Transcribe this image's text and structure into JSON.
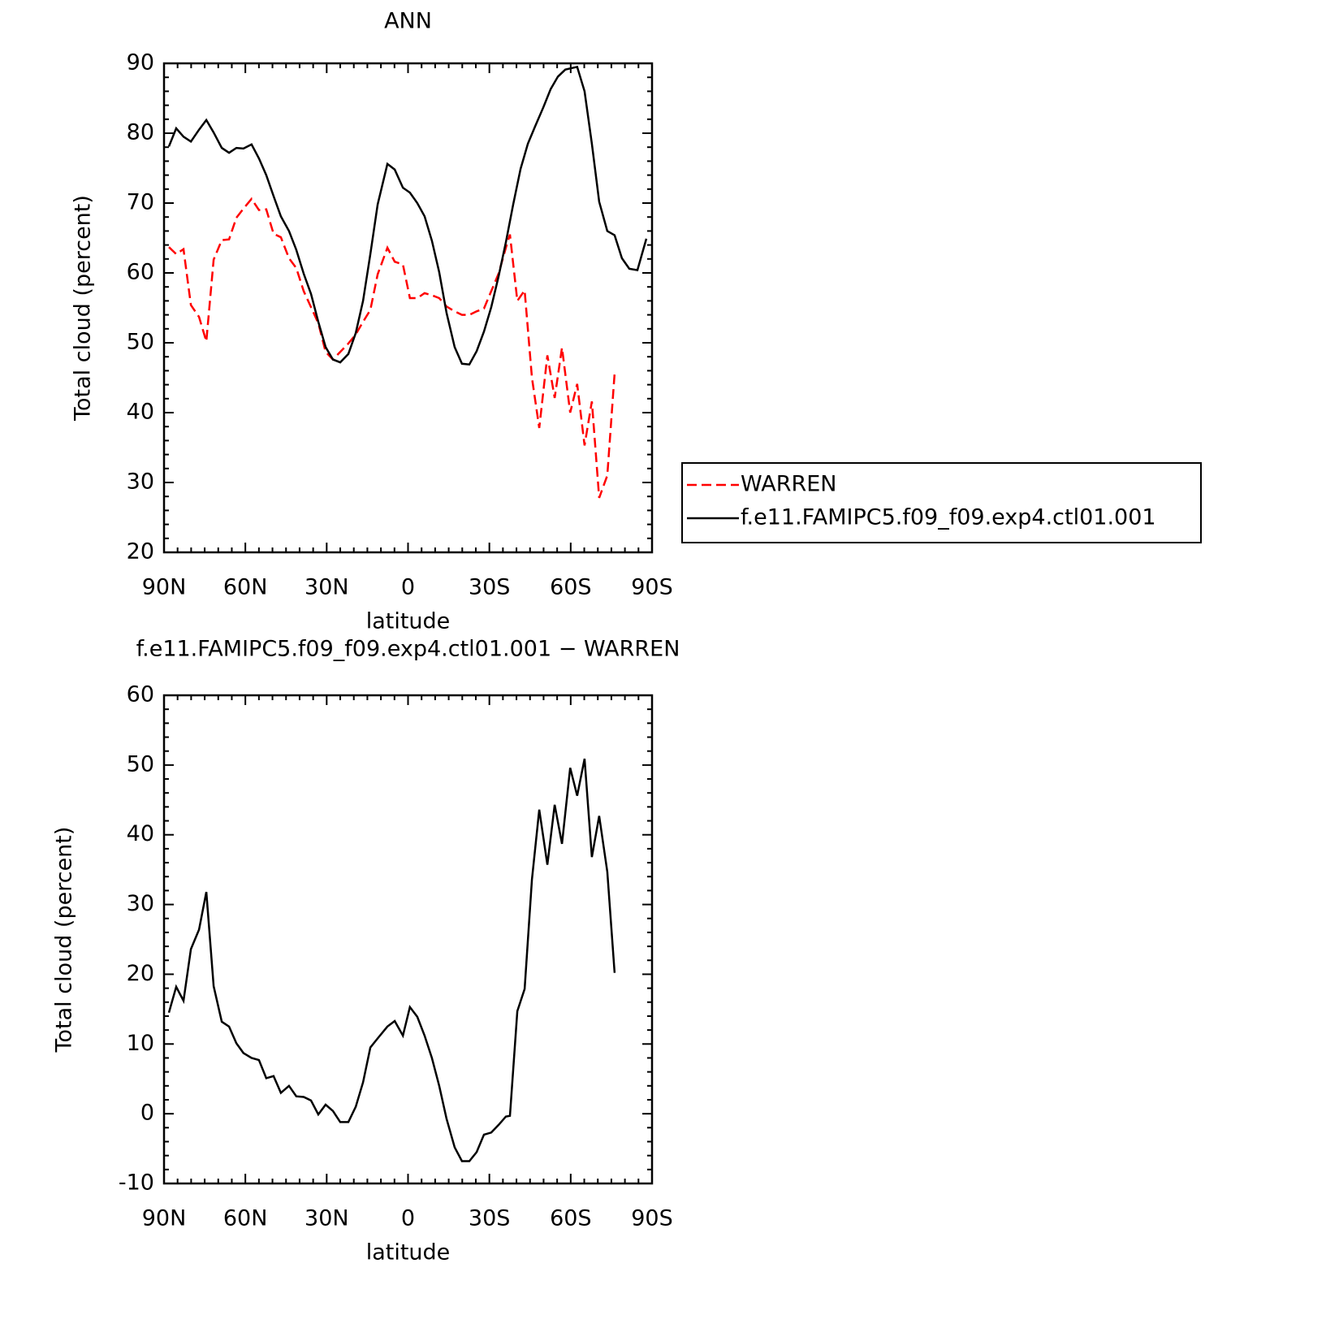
{
  "chart_data": [
    {
      "type": "line",
      "title": "ANN",
      "xlabel": "latitude",
      "ylabel": "Total cloud (percent)",
      "xlim": [
        90,
        -90
      ],
      "ylim": [
        20,
        90
      ],
      "xticks": [
        {
          "value": 90,
          "label": "90N"
        },
        {
          "value": 60,
          "label": "60N"
        },
        {
          "value": 30,
          "label": "30N"
        },
        0,
        {
          "value": -30,
          "label": "30S"
        },
        {
          "value": -60,
          "label": "60S"
        },
        {
          "value": -90,
          "label": "90S"
        }
      ],
      "yticks": [
        20,
        30,
        40,
        50,
        60,
        70,
        80,
        90
      ],
      "legend": "right",
      "series": [
        {
          "name": "WARREN",
          "color": "#ff0000",
          "dash": true,
          "x": [
            88.2,
            85.5,
            82.8,
            80.1,
            77.1,
            74.4,
            71.7,
            68.7,
            66.0,
            63.3,
            60.7,
            57.7,
            55.0,
            52.3,
            49.6,
            46.9,
            43.9,
            41.2,
            38.5,
            35.8,
            33.1,
            30.4,
            27.7,
            25.0,
            22.0,
            19.3,
            16.6,
            13.9,
            11.2,
            7.6,
            4.9,
            1.9,
            -0.7,
            -3.4,
            -6.1,
            -8.8,
            -11.5,
            -14.2,
            -17.2,
            -19.9,
            -22.6,
            -25.3,
            -28.0,
            -30.7,
            -33.4,
            -36.1,
            -37.6,
            -40.3,
            -43.0,
            -45.7,
            -48.4,
            -51.4,
            -54.1,
            -56.8,
            -59.8,
            -62.4,
            -65.1,
            -67.8,
            -70.5,
            -73.5,
            -76.2
          ],
          "values": [
            63.7,
            62.7,
            63.4,
            55.4,
            53.7,
            50.2,
            61.9,
            64.7,
            64.8,
            67.9,
            69.2,
            70.6,
            69.0,
            69.1,
            65.6,
            65.1,
            62.1,
            60.7,
            57.4,
            55.1,
            52.8,
            48.7,
            47.6,
            48.7,
            49.9,
            51.2,
            53.0,
            54.7,
            59.8,
            63.6,
            61.6,
            61.2,
            56.4,
            56.4,
            57.1,
            56.8,
            56.4,
            55.2,
            54.5,
            54.0,
            54.0,
            54.5,
            54.9,
            57.4,
            59.9,
            63.6,
            65.5,
            56.0,
            57.5,
            45.0,
            37.8,
            48.2,
            42.1,
            49.3,
            40.0,
            44.1,
            35.3,
            41.6,
            27.8,
            31.0,
            45.6
          ]
        },
        {
          "name": "f.e11.FAMIPC5.f09_f09.exp4.ctl01.001",
          "color": "#000000",
          "dash": false,
          "x": [
            88.2,
            85.5,
            82.8,
            80.1,
            77.1,
            74.4,
            71.7,
            68.7,
            66.0,
            63.3,
            60.7,
            57.7,
            55.0,
            52.3,
            49.6,
            46.9,
            43.9,
            41.2,
            38.5,
            35.8,
            33.1,
            30.4,
            27.7,
            25.0,
            22.0,
            19.3,
            16.6,
            13.9,
            11.2,
            7.6,
            4.9,
            1.9,
            -0.7,
            -3.4,
            -6.1,
            -8.8,
            -11.5,
            -14.2,
            -17.2,
            -19.9,
            -22.6,
            -25.3,
            -28.0,
            -30.7,
            -33.4,
            -36.1,
            -38.8,
            -41.5,
            -44.2,
            -46.9,
            -49.9,
            -52.6,
            -55.3,
            -58.0,
            -62.4,
            -65.1,
            -67.8,
            -70.5,
            -73.5,
            -76.2,
            -78.9,
            -81.6,
            -84.6,
            -87.9
          ],
          "values": [
            78.1,
            80.7,
            79.5,
            78.8,
            80.5,
            81.9,
            80.1,
            77.9,
            77.2,
            77.9,
            77.8,
            78.4,
            76.4,
            74.0,
            71.0,
            68.1,
            66.0,
            63.3,
            59.9,
            57.0,
            53.0,
            49.4,
            47.6,
            47.2,
            48.4,
            51.4,
            56.0,
            62.7,
            69.8,
            75.6,
            74.8,
            72.2,
            71.5,
            70.0,
            68.1,
            64.6,
            60.1,
            54.3,
            49.4,
            47.0,
            46.9,
            48.8,
            51.6,
            55.1,
            59.5,
            64.4,
            69.8,
            74.9,
            78.5,
            81.0,
            83.7,
            86.3,
            88.1,
            89.1,
            89.5,
            86.0,
            78.5,
            70.2,
            66.0,
            65.4,
            62.1,
            60.6,
            60.4,
            64.9
          ]
        }
      ]
    },
    {
      "type": "line",
      "title": "f.e11.FAMIPC5.f09_f09.exp4.ctl01.001 − WARREN",
      "xlabel": "latitude",
      "ylabel": "Total cloud (percent)",
      "xlim": [
        90,
        -90
      ],
      "ylim": [
        -10,
        60
      ],
      "xticks": [
        {
          "value": 90,
          "label": "90N"
        },
        {
          "value": 60,
          "label": "60N"
        },
        {
          "value": 30,
          "label": "30N"
        },
        0,
        {
          "value": -30,
          "label": "30S"
        },
        {
          "value": -60,
          "label": "60S"
        },
        {
          "value": -90,
          "label": "90S"
        }
      ],
      "yticks": [
        -10,
        0,
        10,
        20,
        30,
        40,
        50,
        60
      ],
      "series": [
        {
          "color": "#000000",
          "dash": false,
          "x": [
            88.2,
            85.5,
            82.8,
            80.1,
            77.1,
            74.4,
            71.7,
            68.7,
            66.0,
            63.3,
            60.7,
            57.7,
            55.0,
            52.3,
            49.6,
            46.9,
            43.9,
            41.2,
            38.5,
            35.8,
            33.1,
            30.4,
            27.7,
            25.0,
            22.0,
            19.3,
            16.6,
            13.9,
            11.2,
            7.6,
            4.9,
            1.9,
            -0.7,
            -3.4,
            -6.1,
            -8.8,
            -11.5,
            -14.2,
            -17.2,
            -19.9,
            -22.6,
            -25.3,
            -28.0,
            -30.7,
            -33.4,
            -36.1,
            -37.6,
            -40.3,
            -43.0,
            -45.7,
            -48.4,
            -51.4,
            -54.1,
            -56.8,
            -59.8,
            -62.4,
            -65.1,
            -67.8,
            -70.5,
            -73.5,
            -76.2
          ],
          "values": [
            14.5,
            18.2,
            16.2,
            23.6,
            26.4,
            31.8,
            18.3,
            13.2,
            12.5,
            10.1,
            8.7,
            8.0,
            7.7,
            5.1,
            5.4,
            3.0,
            4.0,
            2.5,
            2.4,
            1.9,
            -0.1,
            1.3,
            0.4,
            -1.2,
            -1.2,
            1.0,
            4.5,
            9.5,
            10.8,
            12.5,
            13.3,
            11.2,
            15.3,
            13.9,
            11.2,
            8.0,
            4.0,
            -0.7,
            -4.8,
            -6.8,
            -6.8,
            -5.5,
            -3.0,
            -2.7,
            -1.6,
            -0.4,
            -0.3,
            14.7,
            17.9,
            33.6,
            43.6,
            35.7,
            44.3,
            38.7,
            49.6,
            45.6,
            50.9,
            36.8,
            42.7,
            34.7,
            20.2
          ]
        }
      ]
    }
  ]
}
